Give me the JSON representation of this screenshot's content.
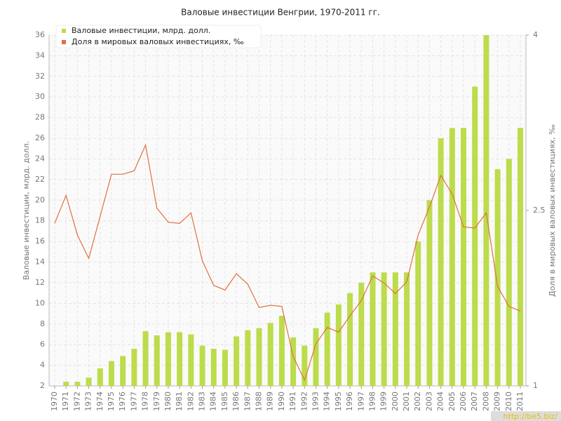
{
  "chart_data": {
    "type": "bar-line",
    "title": "Валовые инвестиции Венгрии, 1970-2011 гг.",
    "ylabel": "Валовые инвестиции, млрд. долл.",
    "y2label": "Доля в мировых валовых инвестициях, ‰",
    "categories": [
      "1970",
      "1971",
      "1972",
      "1973",
      "1974",
      "1975",
      "1976",
      "1977",
      "1978",
      "1979",
      "1980",
      "1981",
      "1982",
      "1983",
      "1984",
      "1985",
      "1986",
      "1987",
      "1988",
      "1989",
      "1990",
      "1991",
      "1992",
      "1993",
      "1994",
      "1995",
      "1996",
      "1997",
      "1998",
      "1999",
      "2000",
      "2001",
      "2002",
      "2003",
      "2004",
      "2005",
      "2006",
      "2007",
      "2008",
      "2009",
      "2010",
      "2011"
    ],
    "series": [
      {
        "name": "Валовые инвестиции, млрд. долл.",
        "type": "bar",
        "color": "#bcdc4c",
        "values": [
          null,
          2.4,
          2.4,
          2.8,
          3.7,
          4.4,
          4.9,
          5.6,
          7.3,
          6.9,
          7.2,
          7.2,
          7.0,
          5.9,
          5.6,
          5.5,
          6.8,
          7.4,
          7.6,
          8.1,
          8.8,
          6.7,
          5.9,
          7.6,
          9.1,
          9.9,
          11,
          12,
          13,
          13,
          13,
          13,
          16,
          20,
          26,
          27,
          27,
          31,
          36,
          23,
          24,
          27
        ]
      },
      {
        "name": "Доля в мировых валовых инвестициях, ‰",
        "type": "line",
        "axis": "y2",
        "color": "#e07040",
        "values": [
          2.39,
          2.63,
          2.29,
          2.09,
          2.45,
          2.81,
          2.81,
          2.84,
          3.06,
          2.52,
          2.4,
          2.39,
          2.48,
          2.07,
          1.86,
          1.82,
          1.96,
          1.87,
          1.67,
          1.69,
          1.68,
          1.25,
          1.05,
          1.36,
          1.5,
          1.46,
          1.6,
          1.73,
          1.94,
          1.88,
          1.79,
          1.89,
          2.29,
          2.53,
          2.8,
          2.64,
          2.36,
          2.35,
          2.48,
          1.85,
          1.68,
          1.64
        ]
      }
    ],
    "ylim": [
      2,
      36
    ],
    "yticks": [
      2,
      4,
      6,
      8,
      10,
      12,
      14,
      16,
      18,
      20,
      22,
      24,
      26,
      28,
      30,
      32,
      34,
      36
    ],
    "y2lim": [
      1,
      4
    ],
    "y2ticks": [
      1,
      2.5,
      4
    ],
    "grid": true,
    "legend": "top-left",
    "watermark": "http://be5.biz/"
  }
}
